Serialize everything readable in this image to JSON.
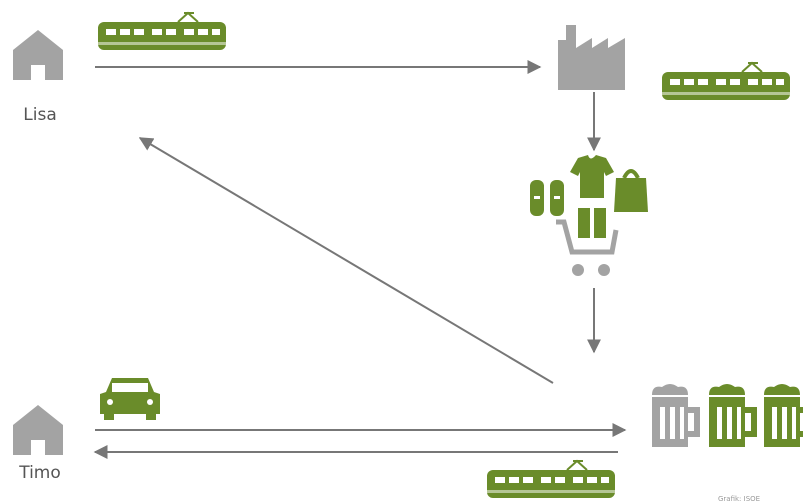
{
  "labels": {
    "home_top": "Lisa",
    "home_bottom": "Timo"
  },
  "credit": "Grafik: ISOE"
}
